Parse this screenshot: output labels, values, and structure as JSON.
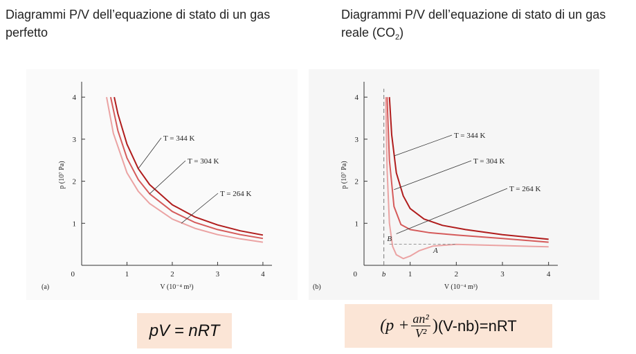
{
  "header": {
    "left_title": "Diagrammi P/V dell’equazione di stato di un gas perfetto",
    "right_title_main": "Diagrammi P/V dell’equazione di stato di un gas reale (CO",
    "right_title_sub": "2",
    "right_title_end": ")"
  },
  "formulas": {
    "ideal": "pV = nRT",
    "real_open": "(p + ",
    "real_num": "an²",
    "real_den": "V²",
    "real_close": ")",
    "real_rest": " (V-nb)=nRT"
  },
  "colors": {
    "curve_high": "#b01c1c",
    "curve_mid": "#d55a5a",
    "curve_low": "#eba3a3",
    "formula_bg": "#fbe5d6",
    "dashed": "#777777"
  },
  "chart_data": [
    {
      "type": "line",
      "panel_label": "(a)",
      "xlabel": "V (10⁻⁴ m³)",
      "ylabel": "p (10⁷ Pa)",
      "xlim": [
        0,
        4.2
      ],
      "ylim": [
        0,
        4.3
      ],
      "x_ticks": [
        "1",
        "2",
        "3",
        "4"
      ],
      "y_ticks": [
        "1",
        "2",
        "3",
        "4"
      ],
      "origin_label": "0",
      "series": [
        {
          "name": "T = 344 K",
          "x": [
            0.72,
            0.8,
            1.0,
            1.25,
            1.5,
            2.0,
            2.5,
            3.0,
            3.5,
            4.0
          ],
          "y": [
            4.0,
            3.6,
            2.88,
            2.3,
            1.92,
            1.44,
            1.15,
            0.96,
            0.82,
            0.72
          ]
        },
        {
          "name": "T = 304 K",
          "x": [
            0.64,
            0.8,
            1.0,
            1.25,
            1.5,
            2.0,
            2.5,
            3.0,
            3.5,
            4.0
          ],
          "y": [
            4.0,
            3.2,
            2.55,
            2.04,
            1.7,
            1.28,
            1.02,
            0.85,
            0.73,
            0.64
          ]
        },
        {
          "name": "T = 264 K",
          "x": [
            0.55,
            0.7,
            1.0,
            1.25,
            1.5,
            2.0,
            2.5,
            3.0,
            3.5,
            4.0
          ],
          "y": [
            4.0,
            3.14,
            2.2,
            1.76,
            1.47,
            1.1,
            0.88,
            0.73,
            0.63,
            0.55
          ]
        }
      ]
    },
    {
      "type": "line",
      "panel_label": "(b)",
      "xlabel": "V (10⁻⁴ m³)",
      "ylabel": "p (10⁷ Pa)",
      "xlim": [
        0,
        4.2
      ],
      "ylim": [
        0,
        4.3
      ],
      "x_ticks": [
        "1",
        "2",
        "3",
        "4"
      ],
      "y_ticks": [
        "1",
        "2",
        "3",
        "4"
      ],
      "origin_label": "0",
      "b_label": "b",
      "b_value": 0.43,
      "annotations": [
        "A",
        "B"
      ],
      "series": [
        {
          "name": "T = 344 K",
          "x": [
            0.55,
            0.6,
            0.7,
            0.85,
            1.0,
            1.3,
            1.7,
            2.2,
            3.0,
            4.0
          ],
          "y": [
            4.0,
            3.1,
            2.2,
            1.65,
            1.35,
            1.1,
            0.95,
            0.85,
            0.73,
            0.62
          ]
        },
        {
          "name": "T = 304 K",
          "x": [
            0.5,
            0.55,
            0.65,
            0.8,
            1.0,
            1.4,
            2.0,
            3.0,
            4.0
          ],
          "y": [
            4.0,
            2.5,
            1.4,
            0.97,
            0.85,
            0.78,
            0.72,
            0.64,
            0.55
          ]
        },
        {
          "name": "T = 264 K",
          "x": [
            0.47,
            0.5,
            0.55,
            0.62,
            0.7,
            0.85,
            1.0,
            1.2,
            1.5,
            2.0,
            3.0,
            4.0
          ],
          "y": [
            4.0,
            2.3,
            1.0,
            0.45,
            0.25,
            0.16,
            0.22,
            0.35,
            0.46,
            0.5,
            0.47,
            0.44
          ]
        }
      ]
    }
  ]
}
